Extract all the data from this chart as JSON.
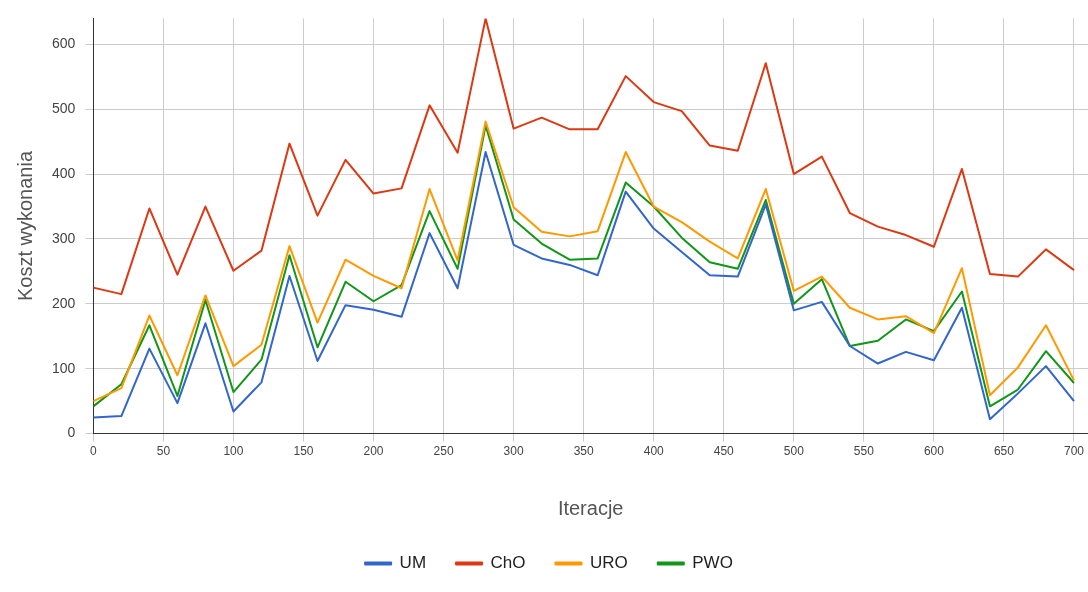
{
  "chart_data": {
    "type": "line",
    "xlabel": "Iteracje",
    "ylabel": "Koszt wykonania",
    "x": [
      0,
      20,
      40,
      60,
      80,
      100,
      120,
      140,
      160,
      180,
      200,
      220,
      240,
      260,
      280,
      300,
      320,
      340,
      360,
      380,
      400,
      420,
      440,
      460,
      480,
      500,
      520,
      540,
      560,
      580,
      600,
      620,
      640,
      660,
      680,
      700
    ],
    "series": [
      {
        "name": "UM",
        "color": "#3366cc",
        "values": [
          25,
          27,
          131,
          47,
          170,
          34,
          79,
          243,
          112,
          198,
          191,
          180,
          309,
          224,
          434,
          291,
          270,
          260,
          244,
          373,
          316,
          280,
          244,
          242,
          353,
          190,
          203,
          135,
          108,
          126,
          113,
          194,
          22,
          62,
          104,
          50
        ]
      },
      {
        "name": "ChO",
        "color": "#dc3912",
        "values": [
          225,
          215,
          347,
          245,
          350,
          251,
          282,
          447,
          336,
          422,
          370,
          378,
          506,
          433,
          640,
          470,
          487,
          469,
          469,
          551,
          511,
          497,
          444,
          436,
          571,
          400,
          427,
          340,
          319,
          306,
          288,
          408,
          246,
          242,
          284,
          252
        ]
      },
      {
        "name": "URO",
        "color": "#ff9900",
        "values": [
          50,
          70,
          182,
          90,
          213,
          104,
          137,
          289,
          171,
          268,
          243,
          224,
          377,
          267,
          481,
          349,
          311,
          304,
          312,
          434,
          350,
          326,
          296,
          270,
          377,
          220,
          242,
          194,
          176,
          181,
          155,
          255,
          59,
          102,
          167,
          82
        ]
      },
      {
        "name": "PWO",
        "color": "#109618",
        "values": [
          42,
          76,
          167,
          58,
          206,
          64,
          114,
          275,
          133,
          234,
          204,
          229,
          343,
          254,
          475,
          330,
          293,
          268,
          270,
          387,
          350,
          302,
          264,
          254,
          360,
          200,
          238,
          135,
          143,
          176,
          158,
          219,
          42,
          68,
          127,
          78
        ]
      }
    ],
    "xlim": [
      0,
      710
    ],
    "xticks": [
      0,
      50,
      100,
      150,
      200,
      250,
      300,
      350,
      400,
      450,
      500,
      550,
      600,
      650,
      700
    ],
    "ylim": [
      0,
      640
    ],
    "yticks": [
      0,
      100,
      200,
      300,
      400,
      500,
      600
    ],
    "grid": true,
    "legend": "bottom",
    "marker": "none",
    "line_style": "solid"
  }
}
